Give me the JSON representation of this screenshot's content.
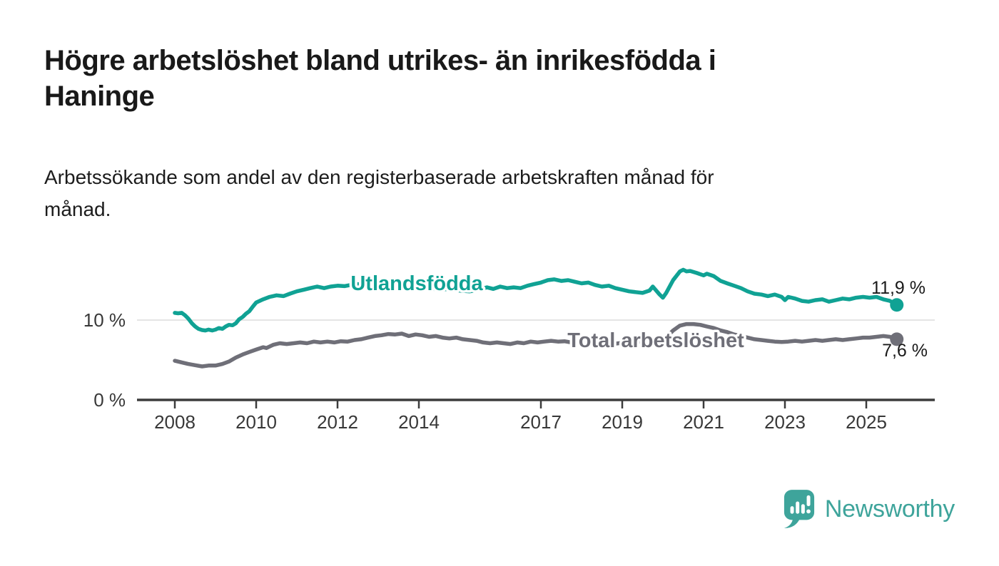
{
  "header": {
    "title_line1": "Högre arbetslöshet bland utrikes- än inrikesfödda i",
    "title_line2": "Haninge",
    "subtitle_line1": "Arbetssökande som andel av den registerbaserade arbetskraften månad för",
    "subtitle_line2": "månad."
  },
  "footer": {
    "brand": "Newsworthy",
    "logo_color": "#3ea49b",
    "logo_icon": "speech-bubble-bar-chart-icon"
  },
  "chart_data": {
    "type": "line",
    "title": "Högre arbetslöshet bland utrikes- än inrikesfödda i Haninge",
    "subtitle": "Arbetssökande som andel av den registerbaserade arbetskraften månad för månad.",
    "ylabel": "",
    "xlabel": "",
    "grid": "single horizontal gridline at 10 %",
    "legend_position": "inline-labels-on-lines",
    "x_range": [
      2007.1,
      2026.7
    ],
    "y_axis": {
      "unit": "%",
      "range": [
        0,
        18
      ],
      "ticks": [
        {
          "value": 0,
          "label": "0 %"
        },
        {
          "value": 10,
          "label": "10 %"
        }
      ]
    },
    "x_axis": {
      "ticks": [
        {
          "value": 2008,
          "label": "2008"
        },
        {
          "value": 2010,
          "label": "2010"
        },
        {
          "value": 2012,
          "label": "2012"
        },
        {
          "value": 2014,
          "label": "2014"
        },
        {
          "value": 2017,
          "label": "2017"
        },
        {
          "value": 2019,
          "label": "2019"
        },
        {
          "value": 2021,
          "label": "2021"
        },
        {
          "value": 2023,
          "label": "2023"
        },
        {
          "value": 2025,
          "label": "2025"
        }
      ]
    },
    "series": [
      {
        "name": "Utlandsfödda",
        "color": "#10a294",
        "last_value": 11.9,
        "last_value_label": "11,9 %",
        "points": [
          [
            2008.0,
            10.9
          ],
          [
            2008.08,
            10.85
          ],
          [
            2008.17,
            10.9
          ],
          [
            2008.25,
            10.6
          ],
          [
            2008.33,
            10.2
          ],
          [
            2008.42,
            9.6
          ],
          [
            2008.5,
            9.2
          ],
          [
            2008.58,
            8.9
          ],
          [
            2008.67,
            8.75
          ],
          [
            2008.75,
            8.7
          ],
          [
            2008.83,
            8.8
          ],
          [
            2008.92,
            8.7
          ],
          [
            2009.0,
            8.8
          ],
          [
            2009.08,
            9.0
          ],
          [
            2009.17,
            8.9
          ],
          [
            2009.25,
            9.2
          ],
          [
            2009.33,
            9.4
          ],
          [
            2009.42,
            9.35
          ],
          [
            2009.5,
            9.6
          ],
          [
            2009.58,
            10.1
          ],
          [
            2009.67,
            10.4
          ],
          [
            2009.75,
            10.8
          ],
          [
            2009.83,
            11.1
          ],
          [
            2009.92,
            11.7
          ],
          [
            2010.0,
            12.2
          ],
          [
            2010.17,
            12.6
          ],
          [
            2010.33,
            12.9
          ],
          [
            2010.5,
            13.1
          ],
          [
            2010.67,
            13.0
          ],
          [
            2010.83,
            13.3
          ],
          [
            2011.0,
            13.6
          ],
          [
            2011.17,
            13.8
          ],
          [
            2011.33,
            14.0
          ],
          [
            2011.5,
            14.2
          ],
          [
            2011.67,
            14.0
          ],
          [
            2011.83,
            14.2
          ],
          [
            2012.0,
            14.3
          ],
          [
            2012.17,
            14.25
          ],
          [
            2012.33,
            14.4
          ],
          [
            2012.5,
            14.5
          ],
          [
            2012.67,
            14.4
          ],
          [
            2012.83,
            14.55
          ],
          [
            2013.0,
            14.6
          ],
          [
            2013.17,
            14.7
          ],
          [
            2013.33,
            14.5
          ],
          [
            2013.5,
            14.6
          ],
          [
            2013.67,
            14.4
          ],
          [
            2013.83,
            14.5
          ],
          [
            2014.0,
            14.3
          ],
          [
            2014.25,
            14.0
          ],
          [
            2014.5,
            13.8
          ],
          [
            2014.75,
            13.9
          ],
          [
            2015.0,
            13.7
          ],
          [
            2015.25,
            13.6
          ],
          [
            2015.5,
            13.8
          ],
          [
            2015.67,
            14.1
          ],
          [
            2015.83,
            13.9
          ],
          [
            2016.0,
            14.2
          ],
          [
            2016.17,
            14.0
          ],
          [
            2016.33,
            14.1
          ],
          [
            2016.5,
            14.0
          ],
          [
            2016.67,
            14.3
          ],
          [
            2016.83,
            14.5
          ],
          [
            2017.0,
            14.7
          ],
          [
            2017.17,
            15.0
          ],
          [
            2017.33,
            15.1
          ],
          [
            2017.5,
            14.9
          ],
          [
            2017.67,
            15.0
          ],
          [
            2017.83,
            14.8
          ],
          [
            2018.0,
            14.6
          ],
          [
            2018.17,
            14.7
          ],
          [
            2018.33,
            14.4
          ],
          [
            2018.5,
            14.2
          ],
          [
            2018.67,
            14.3
          ],
          [
            2018.83,
            14.0
          ],
          [
            2019.0,
            13.8
          ],
          [
            2019.17,
            13.6
          ],
          [
            2019.33,
            13.5
          ],
          [
            2019.5,
            13.4
          ],
          [
            2019.67,
            13.7
          ],
          [
            2019.75,
            14.2
          ],
          [
            2019.92,
            13.2
          ],
          [
            2020.0,
            12.8
          ],
          [
            2020.08,
            13.4
          ],
          [
            2020.25,
            15.0
          ],
          [
            2020.42,
            16.1
          ],
          [
            2020.5,
            16.3
          ],
          [
            2020.58,
            16.1
          ],
          [
            2020.67,
            16.15
          ],
          [
            2020.83,
            15.9
          ],
          [
            2021.0,
            15.6
          ],
          [
            2021.08,
            15.8
          ],
          [
            2021.25,
            15.5
          ],
          [
            2021.42,
            14.9
          ],
          [
            2021.58,
            14.6
          ],
          [
            2021.75,
            14.3
          ],
          [
            2021.92,
            14.0
          ],
          [
            2022.08,
            13.6
          ],
          [
            2022.25,
            13.3
          ],
          [
            2022.42,
            13.2
          ],
          [
            2022.58,
            13.0
          ],
          [
            2022.75,
            13.2
          ],
          [
            2022.92,
            12.9
          ],
          [
            2023.0,
            12.5
          ],
          [
            2023.08,
            12.9
          ],
          [
            2023.25,
            12.7
          ],
          [
            2023.42,
            12.4
          ],
          [
            2023.58,
            12.3
          ],
          [
            2023.75,
            12.5
          ],
          [
            2023.92,
            12.6
          ],
          [
            2024.08,
            12.3
          ],
          [
            2024.25,
            12.5
          ],
          [
            2024.42,
            12.7
          ],
          [
            2024.58,
            12.6
          ],
          [
            2024.75,
            12.8
          ],
          [
            2024.92,
            12.9
          ],
          [
            2025.08,
            12.8
          ],
          [
            2025.25,
            12.9
          ],
          [
            2025.42,
            12.6
          ],
          [
            2025.58,
            12.4
          ],
          [
            2025.75,
            11.9
          ]
        ]
      },
      {
        "name": "Total arbetslöshet",
        "color": "#6f6f78",
        "last_value": 7.6,
        "last_value_label": "7,6 %",
        "points": [
          [
            2008.0,
            4.9
          ],
          [
            2008.17,
            4.7
          ],
          [
            2008.33,
            4.5
          ],
          [
            2008.5,
            4.35
          ],
          [
            2008.67,
            4.2
          ],
          [
            2008.83,
            4.3
          ],
          [
            2009.0,
            4.3
          ],
          [
            2009.17,
            4.5
          ],
          [
            2009.33,
            4.8
          ],
          [
            2009.5,
            5.3
          ],
          [
            2009.67,
            5.7
          ],
          [
            2009.83,
            6.0
          ],
          [
            2010.0,
            6.3
          ],
          [
            2010.17,
            6.6
          ],
          [
            2010.25,
            6.5
          ],
          [
            2010.42,
            6.9
          ],
          [
            2010.58,
            7.1
          ],
          [
            2010.75,
            7.0
          ],
          [
            2010.92,
            7.1
          ],
          [
            2011.08,
            7.2
          ],
          [
            2011.25,
            7.1
          ],
          [
            2011.42,
            7.3
          ],
          [
            2011.58,
            7.2
          ],
          [
            2011.75,
            7.3
          ],
          [
            2011.92,
            7.2
          ],
          [
            2012.08,
            7.35
          ],
          [
            2012.25,
            7.3
          ],
          [
            2012.42,
            7.5
          ],
          [
            2012.58,
            7.6
          ],
          [
            2012.75,
            7.8
          ],
          [
            2012.92,
            8.0
          ],
          [
            2013.08,
            8.1
          ],
          [
            2013.25,
            8.25
          ],
          [
            2013.42,
            8.2
          ],
          [
            2013.58,
            8.3
          ],
          [
            2013.75,
            8.0
          ],
          [
            2013.92,
            8.2
          ],
          [
            2014.08,
            8.1
          ],
          [
            2014.25,
            7.9
          ],
          [
            2014.42,
            8.0
          ],
          [
            2014.58,
            7.8
          ],
          [
            2014.75,
            7.7
          ],
          [
            2014.92,
            7.8
          ],
          [
            2015.08,
            7.6
          ],
          [
            2015.25,
            7.5
          ],
          [
            2015.42,
            7.4
          ],
          [
            2015.58,
            7.2
          ],
          [
            2015.75,
            7.1
          ],
          [
            2015.92,
            7.2
          ],
          [
            2016.08,
            7.1
          ],
          [
            2016.25,
            7.0
          ],
          [
            2016.42,
            7.2
          ],
          [
            2016.58,
            7.1
          ],
          [
            2016.75,
            7.3
          ],
          [
            2016.92,
            7.2
          ],
          [
            2017.08,
            7.3
          ],
          [
            2017.25,
            7.4
          ],
          [
            2017.42,
            7.3
          ],
          [
            2017.58,
            7.35
          ],
          [
            2017.75,
            7.2
          ],
          [
            2017.92,
            7.1
          ],
          [
            2018.08,
            7.15
          ],
          [
            2018.25,
            7.0
          ],
          [
            2018.42,
            7.1
          ],
          [
            2018.58,
            7.05
          ],
          [
            2018.75,
            7.0
          ],
          [
            2018.92,
            7.1
          ],
          [
            2019.08,
            7.15
          ],
          [
            2019.25,
            7.2
          ],
          [
            2019.42,
            7.3
          ],
          [
            2019.58,
            7.35
          ],
          [
            2019.75,
            7.5
          ],
          [
            2019.92,
            7.5
          ],
          [
            2020.08,
            7.8
          ],
          [
            2020.25,
            8.7
          ],
          [
            2020.42,
            9.3
          ],
          [
            2020.58,
            9.5
          ],
          [
            2020.75,
            9.5
          ],
          [
            2020.92,
            9.4
          ],
          [
            2021.08,
            9.2
          ],
          [
            2021.25,
            9.0
          ],
          [
            2021.42,
            8.7
          ],
          [
            2021.58,
            8.5
          ],
          [
            2021.75,
            8.2
          ],
          [
            2021.92,
            8.0
          ],
          [
            2022.08,
            7.8
          ],
          [
            2022.25,
            7.6
          ],
          [
            2022.42,
            7.5
          ],
          [
            2022.58,
            7.4
          ],
          [
            2022.75,
            7.3
          ],
          [
            2022.92,
            7.25
          ],
          [
            2023.08,
            7.3
          ],
          [
            2023.25,
            7.4
          ],
          [
            2023.42,
            7.3
          ],
          [
            2023.58,
            7.4
          ],
          [
            2023.75,
            7.5
          ],
          [
            2023.92,
            7.4
          ],
          [
            2024.08,
            7.5
          ],
          [
            2024.25,
            7.6
          ],
          [
            2024.42,
            7.5
          ],
          [
            2024.58,
            7.6
          ],
          [
            2024.75,
            7.7
          ],
          [
            2024.92,
            7.8
          ],
          [
            2025.08,
            7.8
          ],
          [
            2025.25,
            7.9
          ],
          [
            2025.42,
            8.0
          ],
          [
            2025.58,
            7.9
          ],
          [
            2025.75,
            7.6
          ]
        ]
      }
    ]
  }
}
